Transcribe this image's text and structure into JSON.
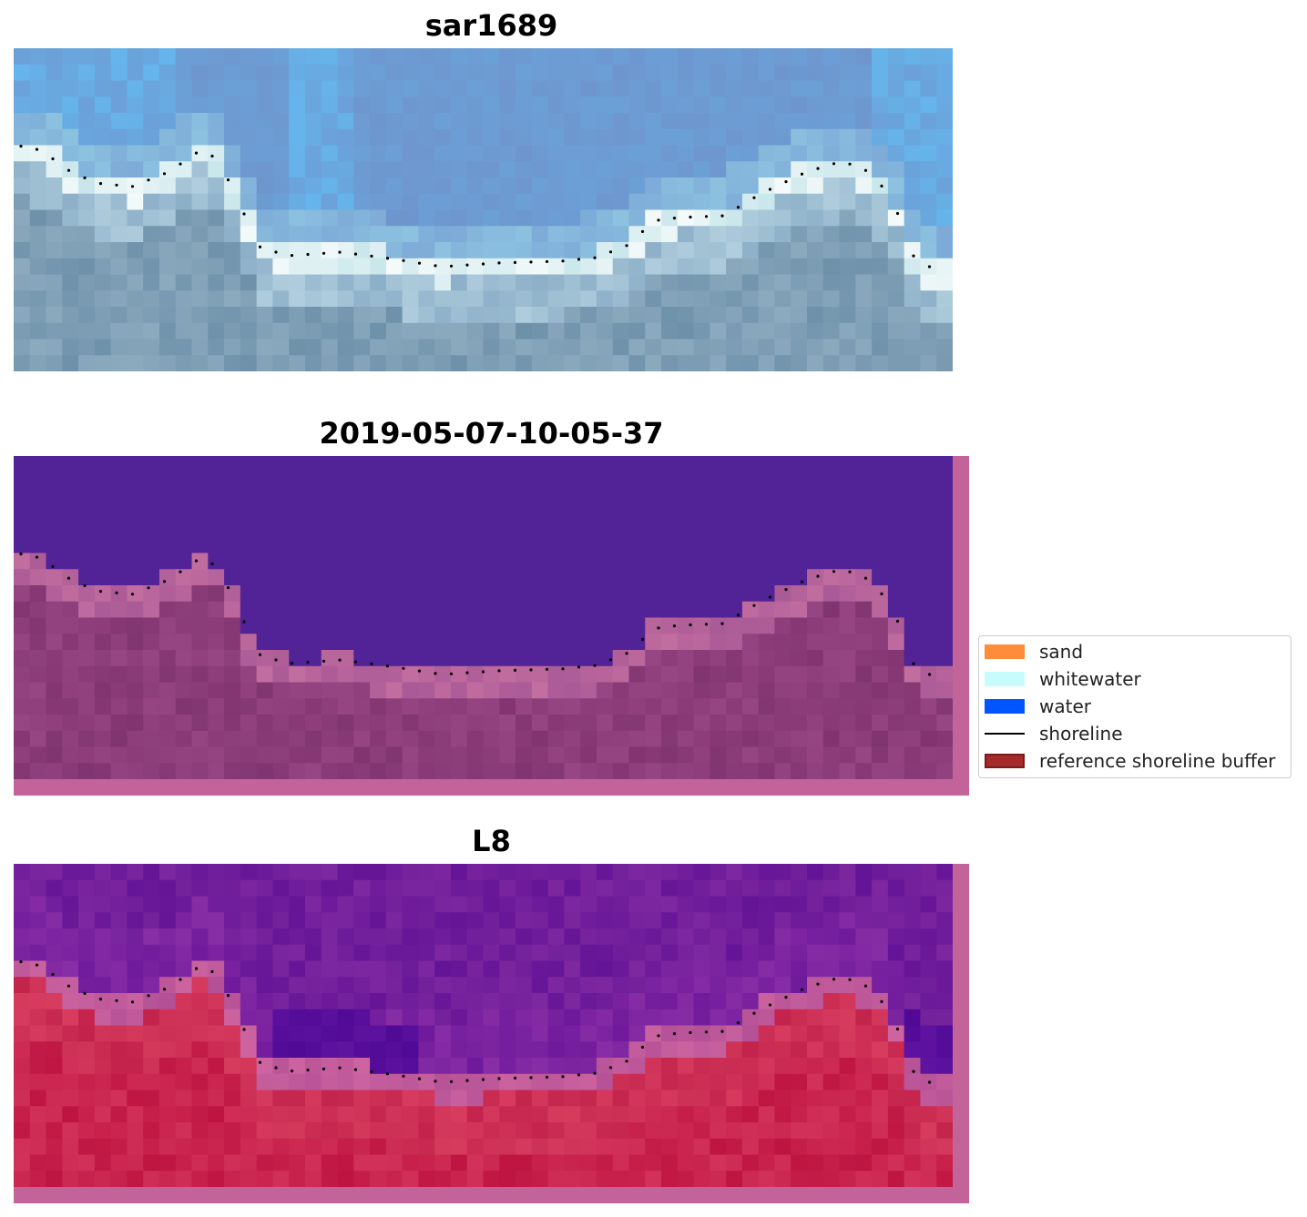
{
  "panels": [
    {
      "id": "rgb",
      "title": "sar1689"
    },
    {
      "id": "classified",
      "title": "2019-05-07-10-05-37"
    },
    {
      "id": "index",
      "title": "L8"
    }
  ],
  "legend": {
    "items": [
      {
        "label": "sand",
        "type": "patch",
        "color": "#ff8c3a"
      },
      {
        "label": "whitewater",
        "type": "patch",
        "color": "#c8fcfc"
      },
      {
        "label": "water",
        "type": "patch",
        "color": "#0055ff"
      },
      {
        "label": "shoreline",
        "type": "line",
        "color": "#000000"
      },
      {
        "label": "reference shoreline buffer",
        "type": "patch",
        "color": "#a52a2a",
        "edge": "#7a1a1a"
      }
    ]
  },
  "colors": {
    "buffer_overlay": "#c2649a",
    "water_class": "#522297",
    "shoreline_dots": "#000000"
  }
}
